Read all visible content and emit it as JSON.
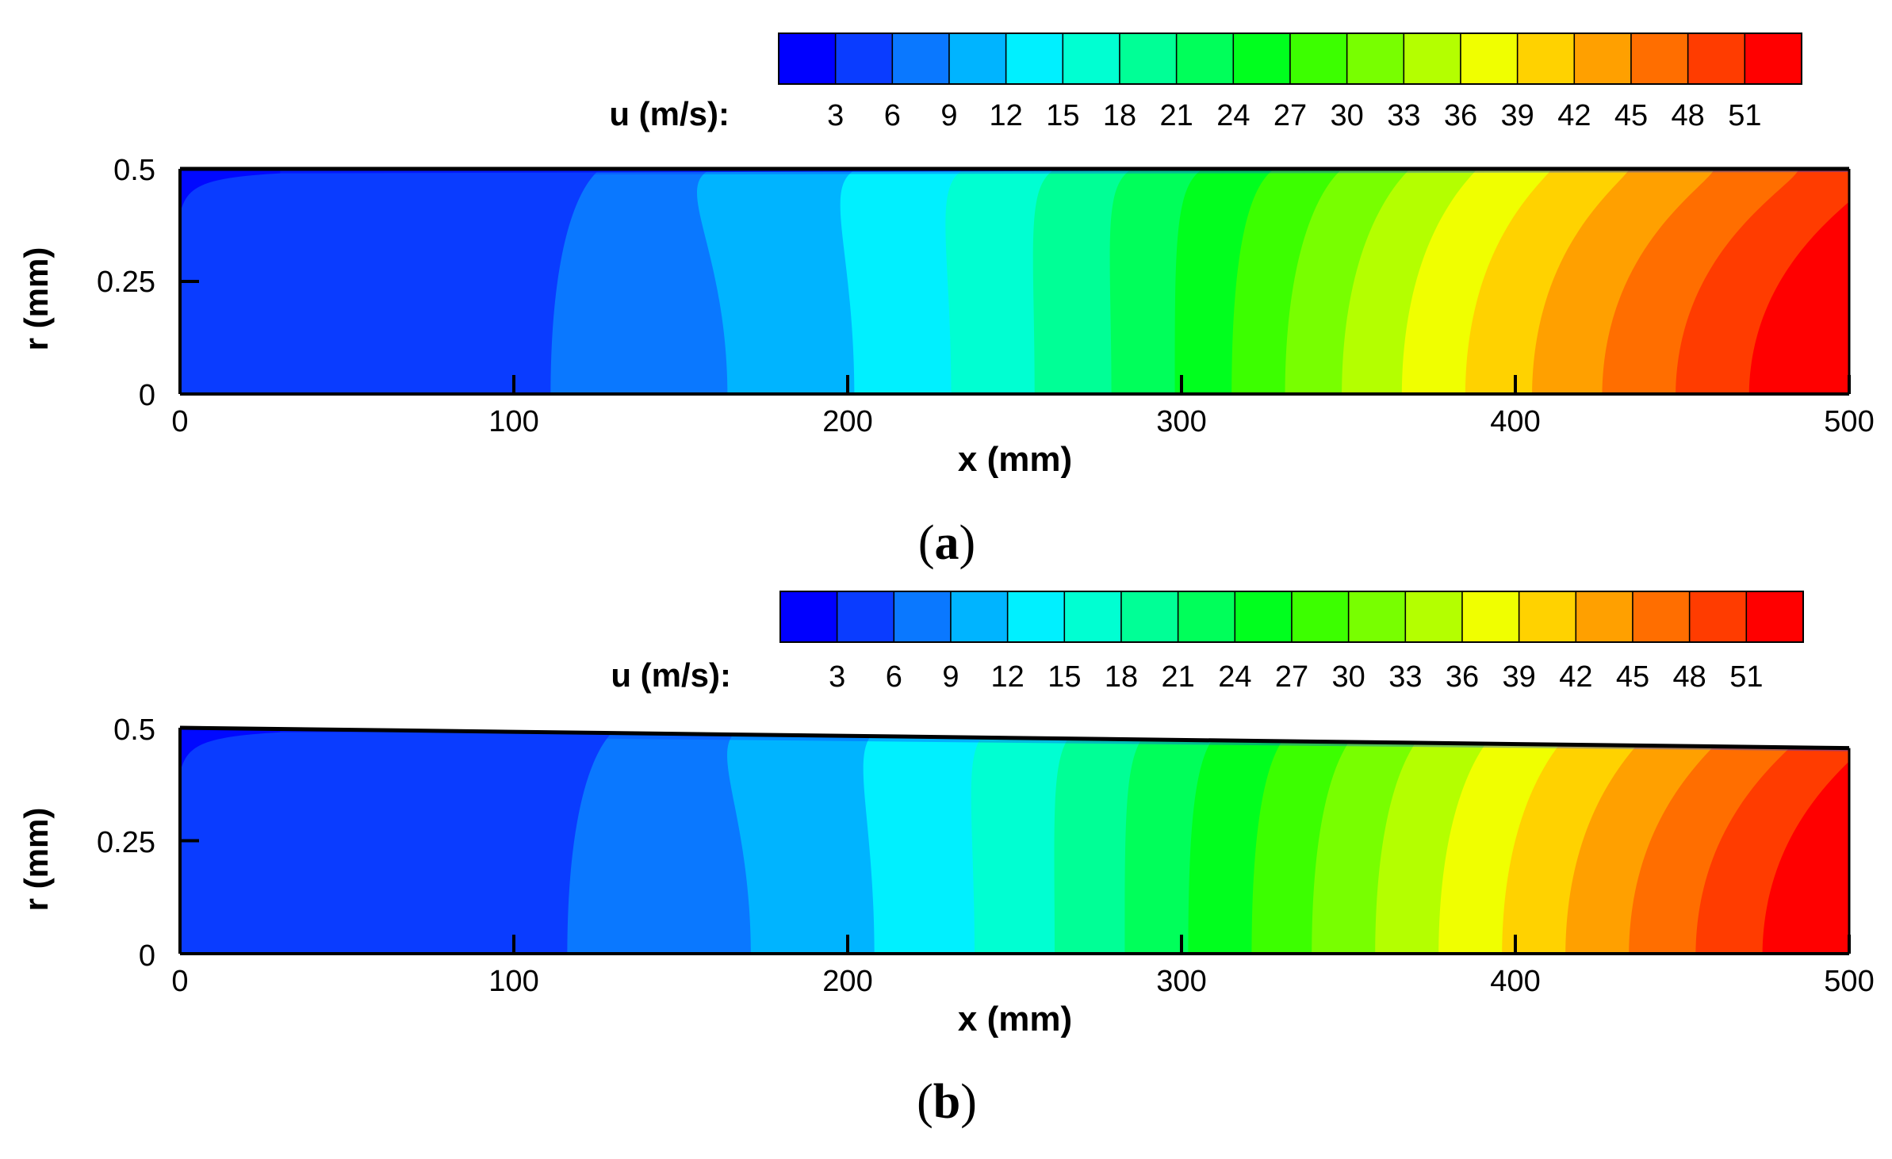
{
  "chart_data": [
    {
      "type": "heatmap",
      "panel_label": {
        "open": "(",
        "letter": "a",
        "close": ")"
      },
      "xlabel": "x (mm)",
      "ylabel": "r (mm)",
      "xlim": [
        0,
        500
      ],
      "ylim": [
        0,
        0.5
      ],
      "x_ticks": [
        "0",
        "100",
        "200",
        "300",
        "400",
        "500"
      ],
      "y_ticks": [
        "0",
        "0.25",
        "0.5"
      ],
      "wall_radius": {
        "x": [
          0,
          500
        ],
        "r": [
          0.5,
          0.5
        ]
      },
      "colorbar": {
        "label": "u (m/s):",
        "levels": [
          0,
          3,
          6,
          9,
          12,
          15,
          18,
          21,
          24,
          27,
          30,
          33,
          36,
          39,
          42,
          45,
          48,
          51,
          54
        ],
        "tick_labels": [
          "3",
          "6",
          "9",
          "12",
          "15",
          "18",
          "21",
          "24",
          "27",
          "30",
          "33",
          "36",
          "39",
          "42",
          "45",
          "48",
          "51"
        ]
      },
      "contour_boundaries": [
        {
          "level": 6,
          "x_axis": 111,
          "x_wall": 118
        },
        {
          "level": 9,
          "x_axis": 164,
          "x_wall": 153
        },
        {
          "level": 12,
          "x_axis": 202,
          "x_wall": 196
        },
        {
          "level": 15,
          "x_axis": 231,
          "x_wall": 228
        },
        {
          "level": 18,
          "x_axis": 256,
          "x_wall": 255
        },
        {
          "level": 21,
          "x_axis": 279,
          "x_wall": 278
        },
        {
          "level": 24,
          "x_axis": 298,
          "x_wall": 299
        },
        {
          "level": 27,
          "x_axis": 315,
          "x_wall": 320
        },
        {
          "level": 30,
          "x_axis": 331,
          "x_wall": 340
        },
        {
          "level": 33,
          "x_axis": 348,
          "x_wall": 360
        },
        {
          "level": 36,
          "x_axis": 366,
          "x_wall": 380
        },
        {
          "level": 39,
          "x_axis": 385,
          "x_wall": 402
        },
        {
          "level": 42,
          "x_axis": 405,
          "x_wall": 425
        },
        {
          "level": 45,
          "x_axis": 426,
          "x_wall": 450
        },
        {
          "level": 48,
          "x_axis": 448,
          "x_wall": 475
        },
        {
          "level": 51,
          "x_axis": 470,
          "x_wall": 500
        }
      ]
    },
    {
      "type": "heatmap",
      "panel_label": {
        "open": "(",
        "letter": "b",
        "close": ")"
      },
      "xlabel": "x (mm)",
      "ylabel": "r (mm)",
      "xlim": [
        0,
        500
      ],
      "ylim": [
        0,
        0.5
      ],
      "x_ticks": [
        "0",
        "100",
        "200",
        "300",
        "400",
        "500"
      ],
      "y_ticks": [
        "0",
        "0.25",
        "0.5"
      ],
      "wall_radius": {
        "x": [
          0,
          500
        ],
        "r": [
          0.5,
          0.455
        ]
      },
      "colorbar": {
        "label": "u (m/s):",
        "levels": [
          0,
          3,
          6,
          9,
          12,
          15,
          18,
          21,
          24,
          27,
          30,
          33,
          36,
          39,
          42,
          45,
          48,
          51,
          54
        ],
        "tick_labels": [
          "3",
          "6",
          "9",
          "12",
          "15",
          "18",
          "21",
          "24",
          "27",
          "30",
          "33",
          "36",
          "39",
          "42",
          "45",
          "48",
          "51"
        ]
      },
      "contour_boundaries": [
        {
          "level": 6,
          "x_axis": 116,
          "x_wall": 123
        },
        {
          "level": 9,
          "x_axis": 171,
          "x_wall": 162
        },
        {
          "level": 12,
          "x_axis": 208,
          "x_wall": 203
        },
        {
          "level": 15,
          "x_axis": 238,
          "x_wall": 236
        },
        {
          "level": 18,
          "x_axis": 262,
          "x_wall": 262
        },
        {
          "level": 21,
          "x_axis": 283,
          "x_wall": 284
        },
        {
          "level": 24,
          "x_axis": 302,
          "x_wall": 305
        },
        {
          "level": 27,
          "x_axis": 321,
          "x_wall": 326
        },
        {
          "level": 30,
          "x_axis": 339,
          "x_wall": 346
        },
        {
          "level": 33,
          "x_axis": 358,
          "x_wall": 366
        },
        {
          "level": 36,
          "x_axis": 377,
          "x_wall": 387
        },
        {
          "level": 39,
          "x_axis": 396,
          "x_wall": 409
        },
        {
          "level": 42,
          "x_axis": 415,
          "x_wall": 432
        },
        {
          "level": 45,
          "x_axis": 434,
          "x_wall": 455
        },
        {
          "level": 48,
          "x_axis": 454,
          "x_wall": 478
        },
        {
          "level": 51,
          "x_axis": 474,
          "x_wall": 500
        }
      ]
    }
  ],
  "colors": {
    "palette": [
      "#0000ff",
      "#0a3cff",
      "#0a78ff",
      "#00b4ff",
      "#00f0ff",
      "#00ffd2",
      "#00ff96",
      "#00ff5a",
      "#00ff1e",
      "#3cff00",
      "#78ff00",
      "#b4ff00",
      "#f0ff00",
      "#ffd200",
      "#ffa000",
      "#ff6e00",
      "#ff3c00",
      "#ff0000"
    ]
  }
}
